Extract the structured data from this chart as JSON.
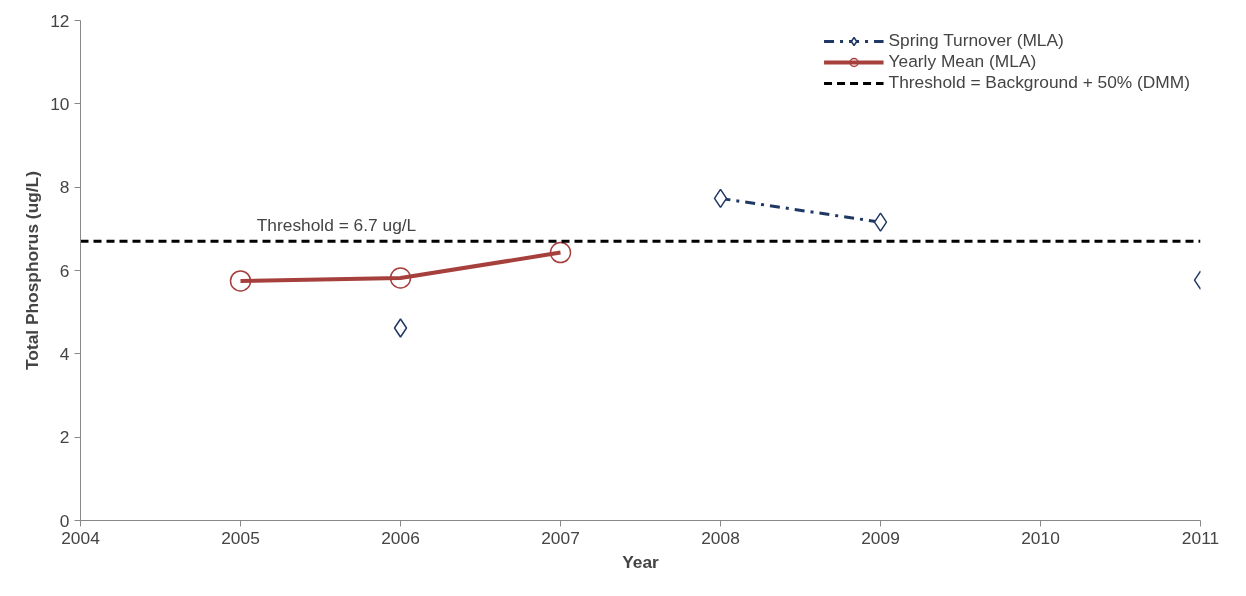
{
  "chart_data": {
    "type": "line",
    "xlabel": "Year",
    "ylabel": "Total Phosphorus (ug/L)",
    "xlim": [
      2004,
      2011
    ],
    "xticks": [
      2004,
      2005,
      2006,
      2007,
      2008,
      2009,
      2010,
      2011
    ],
    "ylim": [
      0,
      12
    ],
    "yticks": [
      0,
      2,
      4,
      6,
      8,
      10,
      12
    ],
    "grid": false,
    "legend": "top right",
    "series": [
      {
        "name": "Spring Turnover (MLA)",
        "color": "#1f3864",
        "marker": "diamond",
        "line_style": "dashdot",
        "x": [
          2006,
          2007,
          2008,
          2009,
          2010,
          2011
        ],
        "values": [
          4.62,
          null,
          7.73,
          7.16,
          null,
          5.77
        ]
      },
      {
        "name": "Yearly Mean (MLA)",
        "color": "#a5403d",
        "marker": "circle",
        "line_style": "solid",
        "x": [
          2005,
          2006,
          2007
        ],
        "values": [
          5.75,
          5.82,
          6.43
        ]
      },
      {
        "name": "Threshold = Background + 50% (DMM)",
        "color": "#000000",
        "marker": "none",
        "line_style": "dashed",
        "x": [
          2004,
          2011
        ],
        "values": [
          6.7,
          6.7
        ]
      }
    ],
    "annotations": [
      {
        "text": "Threshold = 6.7 ug/L",
        "x": 2005.6,
        "y": 6.7
      }
    ]
  }
}
